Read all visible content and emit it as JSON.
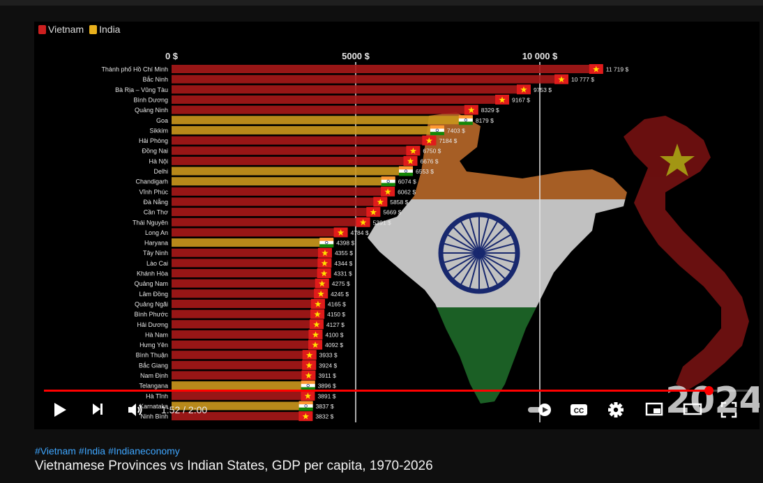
{
  "video": {
    "legend": [
      {
        "label": "Vietnam",
        "color": "#cc1f1f"
      },
      {
        "label": "India",
        "color": "#e8b01c"
      }
    ],
    "year": "2024",
    "time_current": "1:52",
    "time_separator": " / ",
    "time_total": "2:00",
    "progress": 0.94
  },
  "chart_data": {
    "type": "bar",
    "orientation": "horizontal",
    "xlim": [
      0,
      12000
    ],
    "x_ticks": [
      {
        "value": 0,
        "label": "0 $"
      },
      {
        "value": 5000,
        "label": "5000 $"
      },
      {
        "value": 10000,
        "label": "10 000 $"
      }
    ],
    "colors": {
      "Vietnam": "#a51818",
      "India": "#c8951c"
    },
    "bars": [
      {
        "name": "Thành phố Hồ Chí Minh",
        "country": "Vietnam",
        "value": 11719,
        "label": "11 719 $"
      },
      {
        "name": "Bắc Ninh",
        "country": "Vietnam",
        "value": 10777,
        "label": "10 777 $"
      },
      {
        "name": "Bà Rịa – Vũng Tàu",
        "country": "Vietnam",
        "value": 9753,
        "label": "9753 $"
      },
      {
        "name": "Bình Dương",
        "country": "Vietnam",
        "value": 9167,
        "label": "9167 $"
      },
      {
        "name": "Quảng Ninh",
        "country": "Vietnam",
        "value": 8329,
        "label": "8329 $"
      },
      {
        "name": "Goa",
        "country": "India",
        "value": 8179,
        "label": "8179 $"
      },
      {
        "name": "Sikkim",
        "country": "India",
        "value": 7403,
        "label": "7403 $"
      },
      {
        "name": "Hải Phòng",
        "country": "Vietnam",
        "value": 7184,
        "label": "7184 $"
      },
      {
        "name": "Đồng Nai",
        "country": "Vietnam",
        "value": 6750,
        "label": "6750 $"
      },
      {
        "name": "Hà Nội",
        "country": "Vietnam",
        "value": 6676,
        "label": "6676 $"
      },
      {
        "name": "Delhi",
        "country": "India",
        "value": 6553,
        "label": "6553 $"
      },
      {
        "name": "Chandigarh",
        "country": "India",
        "value": 6074,
        "label": "6074 $"
      },
      {
        "name": "Vĩnh Phúc",
        "country": "Vietnam",
        "value": 6062,
        "label": "6062 $"
      },
      {
        "name": "Đà Nẵng",
        "country": "Vietnam",
        "value": 5858,
        "label": "5858 $"
      },
      {
        "name": "Cần Thơ",
        "country": "Vietnam",
        "value": 5669,
        "label": "5669 $"
      },
      {
        "name": "Thái Nguyên",
        "country": "Vietnam",
        "value": 5391,
        "label": "5391 $"
      },
      {
        "name": "Long An",
        "country": "Vietnam",
        "value": 4784,
        "label": "4784 $"
      },
      {
        "name": "Haryana",
        "country": "India",
        "value": 4398,
        "label": "4398 $"
      },
      {
        "name": "Tây Ninh",
        "country": "Vietnam",
        "value": 4355,
        "label": "4355 $"
      },
      {
        "name": "Lào Cai",
        "country": "Vietnam",
        "value": 4344,
        "label": "4344 $"
      },
      {
        "name": "Khánh Hòa",
        "country": "Vietnam",
        "value": 4331,
        "label": "4331 $"
      },
      {
        "name": "Quảng Nam",
        "country": "Vietnam",
        "value": 4275,
        "label": "4275 $"
      },
      {
        "name": "Lâm Đồng",
        "country": "Vietnam",
        "value": 4245,
        "label": "4245 $"
      },
      {
        "name": "Quảng Ngãi",
        "country": "Vietnam",
        "value": 4165,
        "label": "4165 $"
      },
      {
        "name": "Bình Phước",
        "country": "Vietnam",
        "value": 4150,
        "label": "4150 $"
      },
      {
        "name": "Hải Dương",
        "country": "Vietnam",
        "value": 4127,
        "label": "4127 $"
      },
      {
        "name": "Hà Nam",
        "country": "Vietnam",
        "value": 4100,
        "label": "4100 $"
      },
      {
        "name": "Hưng Yên",
        "country": "Vietnam",
        "value": 4092,
        "label": "4092 $"
      },
      {
        "name": "Bình Thuận",
        "country": "Vietnam",
        "value": 3933,
        "label": "3933 $"
      },
      {
        "name": "Bắc Giang",
        "country": "Vietnam",
        "value": 3924,
        "label": "3924 $"
      },
      {
        "name": "Nam Định",
        "country": "Vietnam",
        "value": 3911,
        "label": "3911 $"
      },
      {
        "name": "Telangana",
        "country": "India",
        "value": 3896,
        "label": "3896 $"
      },
      {
        "name": "Hà Tĩnh",
        "country": "Vietnam",
        "value": 3891,
        "label": "3891 $"
      },
      {
        "name": "Karnataka",
        "country": "India",
        "value": 3837,
        "label": "3837 $"
      },
      {
        "name": "Ninh Bình",
        "country": "Vietnam",
        "value": 3832,
        "label": "3832 $"
      }
    ]
  },
  "page": {
    "hashtags": [
      "#Vietnam",
      "#India",
      "#Indianeconomy"
    ],
    "title": "Vietnamese Provinces vs Indian States, GDP per capita, 1970-2026"
  }
}
